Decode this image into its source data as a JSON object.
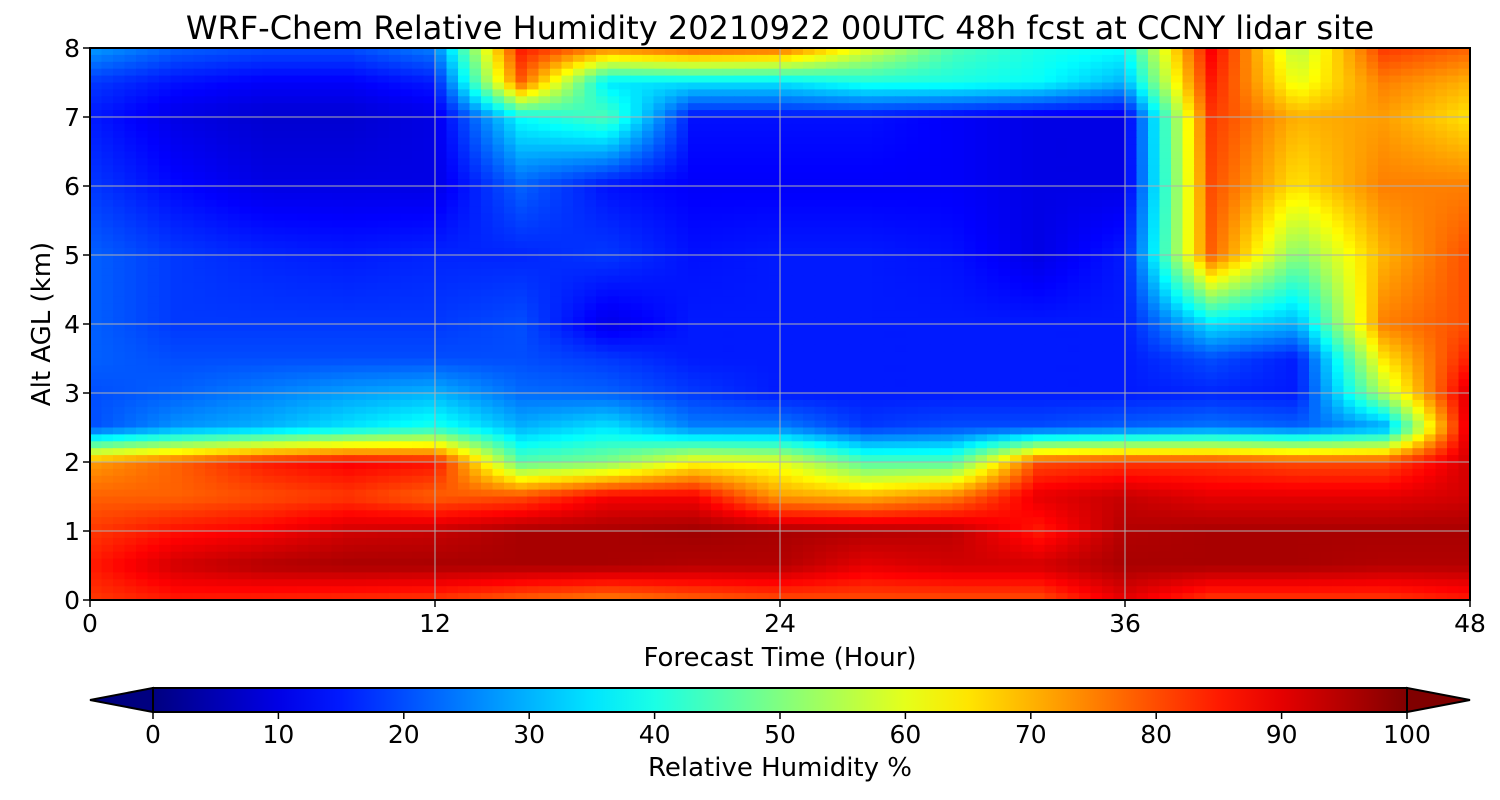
{
  "chart_data": {
    "type": "heatmap",
    "title": "WRF-Chem Relative Humidity 20210922 00UTC 48h fcst at CCNY lidar site",
    "xlabel": "Forecast Time (Hour)",
    "ylabel": "Alt AGL (km)",
    "xlim": [
      0,
      48
    ],
    "ylim": [
      0,
      8
    ],
    "x_ticks": [
      0,
      12,
      24,
      36,
      48
    ],
    "y_ticks": [
      0,
      1,
      2,
      3,
      4,
      5,
      6,
      7,
      8
    ],
    "grid": true,
    "colormap": "jet",
    "colorbar": {
      "label": "Relative Humidity %",
      "ticks": [
        0,
        10,
        20,
        30,
        40,
        50,
        60,
        70,
        80,
        90,
        100
      ],
      "range": [
        0,
        100
      ],
      "orientation": "horizontal",
      "extend": "both",
      "placement": "bottom"
    },
    "x": [
      0,
      3,
      6,
      9,
      12,
      15,
      18,
      21,
      24,
      27,
      30,
      33,
      36,
      39,
      42,
      45,
      48
    ],
    "y": [
      0,
      0.5,
      1,
      1.5,
      2,
      2.5,
      3,
      3.5,
      4,
      5,
      6,
      7,
      7.5,
      8
    ],
    "values": [
      [
        82,
        85,
        84,
        83,
        82,
        78,
        75,
        78,
        80,
        80,
        80,
        80,
        90,
        82,
        82,
        82,
        85
      ],
      [
        85,
        92,
        95,
        96,
        96,
        96,
        96,
        95,
        95,
        90,
        92,
        92,
        96,
        96,
        96,
        95,
        95
      ],
      [
        82,
        86,
        88,
        92,
        93,
        96,
        96,
        97,
        96,
        95,
        94,
        85,
        95,
        96,
        96,
        96,
        96
      ],
      [
        78,
        78,
        80,
        82,
        78,
        80,
        88,
        88,
        72,
        70,
        75,
        90,
        93,
        90,
        90,
        90,
        92
      ],
      [
        72,
        78,
        85,
        88,
        86,
        46,
        50,
        62,
        60,
        45,
        45,
        80,
        82,
        82,
        80,
        80,
        92
      ],
      [
        20,
        27,
        30,
        35,
        40,
        30,
        35,
        25,
        25,
        18,
        20,
        20,
        22,
        24,
        22,
        28,
        92
      ],
      [
        20,
        22,
        25,
        28,
        30,
        23,
        22,
        18,
        15,
        15,
        15,
        15,
        15,
        16,
        15,
        55,
        92
      ],
      [
        22,
        20,
        20,
        20,
        20,
        20,
        18,
        15,
        15,
        15,
        15,
        15,
        15,
        20,
        15,
        65,
        85
      ],
      [
        22,
        18,
        18,
        18,
        18,
        20,
        10,
        15,
        15,
        15,
        15,
        15,
        15,
        35,
        30,
        75,
        80
      ],
      [
        22,
        18,
        16,
        15,
        16,
        16,
        18,
        14,
        15,
        15,
        14,
        10,
        15,
        78,
        50,
        70,
        80
      ],
      [
        18,
        13,
        10,
        10,
        10,
        22,
        14,
        12,
        12,
        12,
        12,
        10,
        10,
        80,
        65,
        75,
        75
      ],
      [
        15,
        10,
        8,
        8,
        10,
        38,
        45,
        14,
        14,
        14,
        12,
        10,
        10,
        82,
        70,
        72,
        65
      ],
      [
        18,
        14,
        12,
        12,
        15,
        78,
        35,
        35,
        35,
        40,
        40,
        38,
        30,
        85,
        60,
        75,
        70
      ],
      [
        28,
        22,
        20,
        20,
        25,
        85,
        75,
        80,
        78,
        60,
        45,
        40,
        38,
        88,
        55,
        82,
        78
      ]
    ]
  }
}
